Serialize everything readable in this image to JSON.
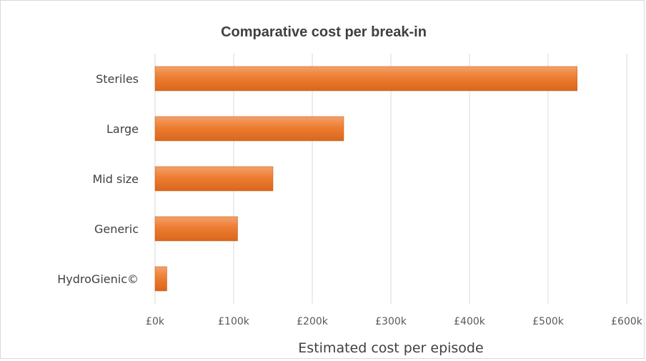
{
  "chart_data": {
    "type": "bar",
    "orientation": "horizontal",
    "title": "Comparative cost per break-in",
    "xlabel": "Estimated cost per episode",
    "ylabel": "",
    "categories": [
      "Steriles",
      "Large",
      "Mid size",
      "Generic",
      "HydroGienic©"
    ],
    "values": [
      537000,
      240000,
      150000,
      105000,
      15000
    ],
    "xlim": [
      0,
      600000
    ],
    "ticks": [
      0,
      100000,
      200000,
      300000,
      400000,
      500000,
      600000
    ],
    "tick_labels": [
      "£0k",
      "£100k",
      "£200k",
      "£300k",
      "£400k",
      "£500k",
      "£600k"
    ],
    "bar_color": "#ed7d31",
    "grid": true,
    "legend": "none"
  }
}
